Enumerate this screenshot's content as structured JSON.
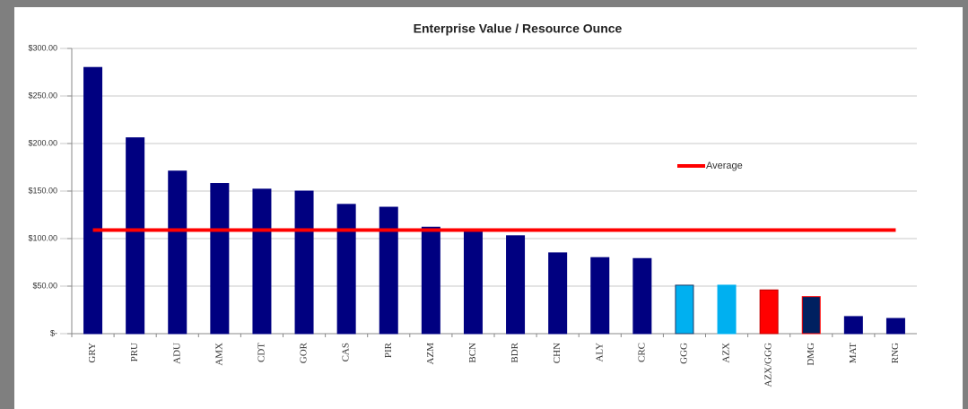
{
  "chart_data": {
    "type": "bar",
    "title": "Enterprise Value / Resource Ounce",
    "categories": [
      "GRY",
      "PRU",
      "ADU",
      "AMX",
      "CDT",
      "GOR",
      "CAS",
      "PIR",
      "AZM",
      "BCN",
      "BDR",
      "CHN",
      "ALY",
      "CRC",
      "GGG",
      "AZX",
      "AZX/GGG",
      "DMG",
      "MAT",
      "RNG"
    ],
    "values": [
      280,
      206,
      171,
      158,
      152,
      150,
      136,
      133,
      112,
      108,
      103,
      85,
      80,
      79,
      51,
      51,
      46,
      39,
      18,
      16
    ],
    "colors": [
      "#000080",
      "#000080",
      "#000080",
      "#000080",
      "#000080",
      "#000080",
      "#000080",
      "#000080",
      "#000080",
      "#000080",
      "#000080",
      "#000080",
      "#000080",
      "#000080",
      "#00b0f0",
      "#00b0f0",
      "#ff0000",
      "#002060",
      "#000080",
      "#000080"
    ],
    "outlines": [
      "#000080",
      "#000080",
      "#000080",
      "#000080",
      "#000080",
      "#000080",
      "#000080",
      "#000080",
      "#000080",
      "#000080",
      "#000080",
      "#000080",
      "#000080",
      "#000080",
      "#1f3864",
      "#00b0f0",
      "#c00000",
      "#ff0000",
      "#000080",
      "#000080"
    ],
    "average": {
      "name": "Average",
      "value": 109,
      "color": "#ff0000"
    },
    "ylim": [
      0,
      300
    ],
    "yticks": [
      {
        "value": 0,
        "label": "$-"
      },
      {
        "value": 50,
        "label": "$50.00"
      },
      {
        "value": 100,
        "label": "$100.00"
      },
      {
        "value": 150,
        "label": "$150.00"
      },
      {
        "value": 200,
        "label": "$200.00"
      },
      {
        "value": 250,
        "label": "$250.00"
      },
      {
        "value": 300,
        "label": "$300.00"
      }
    ],
    "grid": true
  }
}
